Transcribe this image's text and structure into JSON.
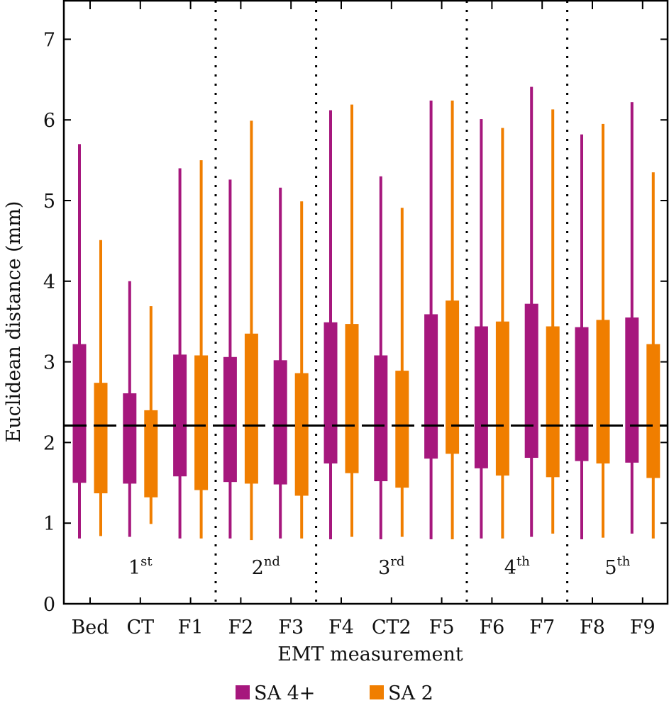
{
  "chart_data": {
    "type": "boxplot",
    "title": "",
    "xlabel": "EMT measurement",
    "ylabel": "Euclidean distance (mm)",
    "ylim": [
      0,
      7.5
    ],
    "yticks": [
      0,
      1,
      2,
      3,
      4,
      5,
      6,
      7
    ],
    "categories": [
      "Bed",
      "CT",
      "F1",
      "F2",
      "F3",
      "F4",
      "CT2",
      "F5",
      "F6",
      "F7",
      "F8",
      "F9"
    ],
    "reference_line": {
      "value": 2.21,
      "style": "dashed",
      "color": "#000000"
    },
    "groups": [
      {
        "label": "1",
        "sup": "st",
        "categories": [
          "Bed",
          "CT",
          "F1"
        ]
      },
      {
        "label": "2",
        "sup": "nd",
        "categories": [
          "F2",
          "F3"
        ]
      },
      {
        "label": "3",
        "sup": "rd",
        "categories": [
          "F4",
          "CT2",
          "F5"
        ]
      },
      {
        "label": "4",
        "sup": "th",
        "categories": [
          "F6",
          "F7"
        ]
      },
      {
        "label": "5",
        "sup": "th",
        "categories": [
          "F8",
          "F9"
        ]
      }
    ],
    "series": [
      {
        "name": "SA 4+",
        "color": "#A6177D",
        "whisker_low": [
          0.81,
          0.83,
          0.81,
          0.81,
          0.81,
          0.8,
          0.8,
          0.8,
          0.81,
          0.83,
          0.8,
          0.87
        ],
        "q1": [
          1.5,
          1.49,
          1.58,
          1.51,
          1.48,
          1.74,
          1.52,
          1.8,
          1.68,
          1.81,
          1.77,
          1.75
        ],
        "q3": [
          3.22,
          2.61,
          3.09,
          3.06,
          3.02,
          3.49,
          3.08,
          3.59,
          3.44,
          3.72,
          3.43,
          3.55
        ],
        "whisker_high": [
          5.7,
          4.0,
          5.4,
          5.26,
          5.16,
          6.12,
          5.3,
          6.24,
          6.01,
          6.41,
          5.82,
          6.22
        ]
      },
      {
        "name": "SA 2",
        "color": "#F07E00",
        "whisker_low": [
          0.84,
          0.99,
          0.81,
          0.79,
          0.81,
          0.83,
          0.83,
          0.8,
          0.81,
          0.87,
          0.82,
          0.81
        ],
        "q1": [
          1.37,
          1.32,
          1.41,
          1.49,
          1.34,
          1.62,
          1.44,
          1.86,
          1.59,
          1.57,
          1.74,
          1.56
        ],
        "q3": [
          2.74,
          2.4,
          3.08,
          3.35,
          2.86,
          3.47,
          2.89,
          3.76,
          3.5,
          3.44,
          3.52,
          3.22
        ],
        "whisker_high": [
          4.51,
          3.69,
          5.5,
          5.99,
          4.99,
          6.19,
          4.91,
          6.24,
          5.9,
          6.13,
          5.95,
          5.35
        ]
      }
    ],
    "legend": {
      "position": "bottom-center",
      "entries": [
        "SA 4+",
        "SA 2"
      ]
    },
    "grid": false
  }
}
